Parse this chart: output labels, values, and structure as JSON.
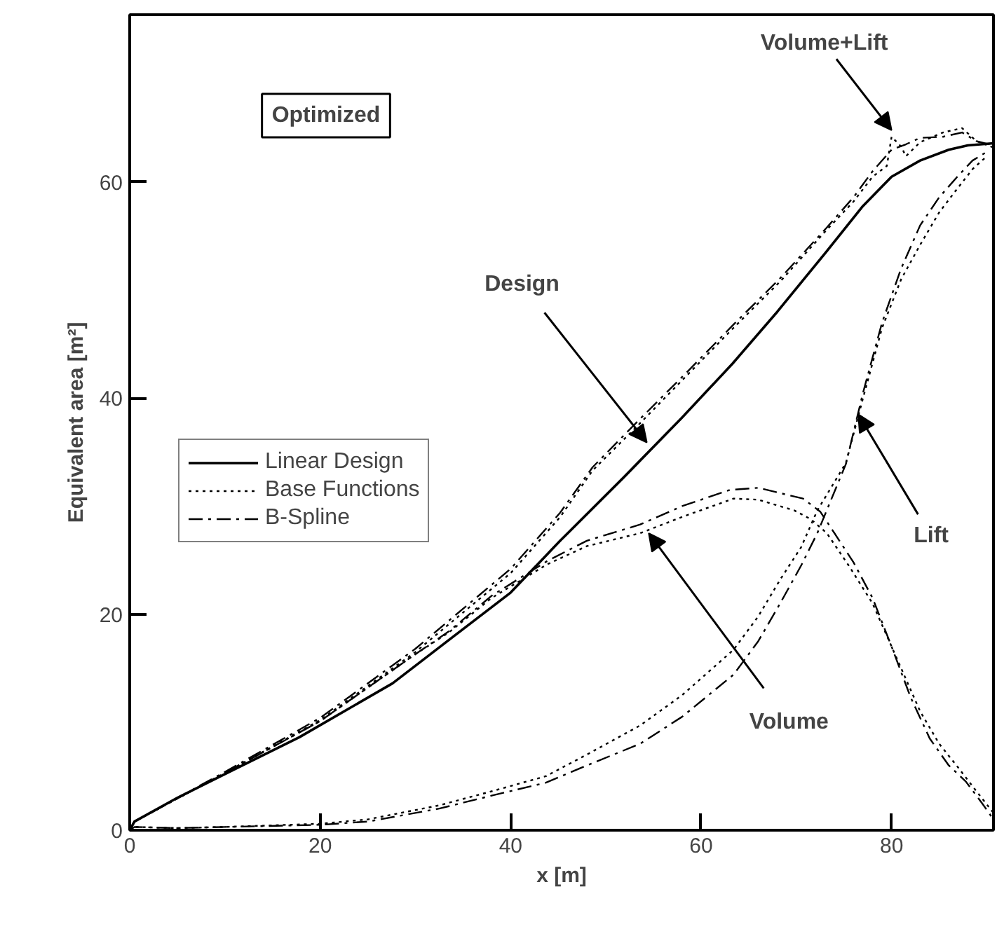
{
  "chart_data": {
    "type": "line",
    "xlabel": "x [m]",
    "ylabel": "Equivalent area [m²]",
    "xlim": [
      0,
      90.7
    ],
    "ylim": [
      0,
      75.5
    ],
    "xticks": [
      0,
      20,
      40,
      60,
      80
    ],
    "yticks": [
      0,
      20,
      40,
      60
    ],
    "grid": false,
    "legend": "left",
    "marker": "none",
    "series": [
      {
        "name": "Linear Design",
        "color": "#000000",
        "line_style": "solid",
        "x": [
          0,
          0.5,
          5,
          10,
          17.8,
          27.6,
          33.5,
          40,
          45.2,
          51.8,
          58,
          63.3,
          68,
          73.1,
          77,
          80,
          83,
          86,
          88,
          90.7
        ],
        "values": [
          0,
          0.8,
          3,
          5.2,
          8.6,
          13.6,
          17.6,
          22,
          26.8,
          32.6,
          38.2,
          43.2,
          48,
          53.5,
          57.8,
          60.5,
          62,
          63,
          63.4,
          63.6
        ]
      },
      {
        "name": "Base Functions",
        "color": "#000000",
        "line_style": "dotted",
        "x": [
          0,
          0.5,
          10,
          20,
          30,
          40,
          45.2,
          48.6,
          53.5,
          58.5,
          63.5,
          68.3,
          73.1,
          76,
          78,
          79.5,
          80,
          81,
          81.5,
          83,
          85.4,
          87.4,
          88.9,
          90.7
        ],
        "values": [
          0,
          0.8,
          5.3,
          10.2,
          16.5,
          23.8,
          29,
          33.3,
          37.6,
          42.1,
          46.6,
          50.8,
          55.5,
          58.2,
          60.5,
          61.5,
          64.2,
          63.3,
          62.4,
          63.7,
          64.6,
          65,
          63.8,
          63.2
        ]
      },
      {
        "color": "#000000",
        "line_style": "dotted",
        "x": [
          0,
          0.5,
          10,
          20,
          30,
          33.5,
          38,
          43.8,
          48,
          53.6,
          58,
          63.4,
          66,
          69.8,
          71.5,
          73.2,
          75.5,
          78,
          80.5,
          83,
          85,
          86.9,
          89,
          90.7
        ],
        "values": [
          0,
          0.8,
          5.3,
          10.1,
          16.3,
          18.3,
          21.5,
          24.6,
          26.3,
          27.5,
          29,
          30.7,
          30.6,
          29.6,
          28.8,
          27.5,
          24.5,
          21,
          16,
          11,
          8,
          5.9,
          3.5,
          1.6
        ]
      },
      {
        "color": "#000000",
        "line_style": "dotted",
        "x": [
          0,
          0.5,
          5,
          10,
          20,
          25,
          32.5,
          38,
          43.7,
          48,
          53.6,
          58,
          63.4,
          66,
          68.3,
          70.5,
          72.2,
          75.2,
          77,
          79,
          81,
          83,
          85,
          86.9,
          88.5,
          90
        ],
        "values": [
          0,
          0.3,
          0.2,
          0.3,
          0.6,
          1.0,
          2.3,
          3.6,
          5.0,
          7.0,
          9.7,
          12.5,
          16.7,
          19.8,
          23.2,
          26.2,
          29.6,
          34,
          40,
          46.5,
          51,
          54.2,
          57.2,
          59.4,
          61.2,
          62.4
        ]
      },
      {
        "name": "B-Spline",
        "color": "#000000",
        "line_style": "dashdot",
        "x": [
          0,
          0.5,
          10,
          20,
          30,
          40,
          45.2,
          48.6,
          53.5,
          58.5,
          63.5,
          68.3,
          73.1,
          76,
          78,
          80,
          81.5,
          83,
          85.4,
          87.4,
          88.9,
          90.7
        ],
        "values": [
          0,
          0.8,
          5.4,
          10.4,
          16.8,
          24.2,
          29.4,
          33.6,
          38,
          42.4,
          46.9,
          51.1,
          55.7,
          58.6,
          61,
          63,
          63.5,
          64.1,
          64.2,
          64.6,
          63.8,
          63.4
        ]
      },
      {
        "color": "#000000",
        "line_style": "dashdot",
        "x": [
          0,
          0.5,
          10,
          20,
          30,
          33.5,
          38,
          43.8,
          48,
          53.6,
          58,
          63,
          66,
          70.7,
          72.5,
          74,
          76,
          78,
          80,
          82,
          84,
          86,
          87.8,
          89.5,
          90.7
        ],
        "values": [
          0,
          0.8,
          5.3,
          10.1,
          16.3,
          18.4,
          21.7,
          24.9,
          26.8,
          28.3,
          30,
          31.5,
          31.7,
          30.7,
          29.5,
          27.5,
          24.8,
          21.5,
          17,
          12.3,
          8.5,
          6,
          4.5,
          2.5,
          1
        ]
      },
      {
        "color": "#000000",
        "line_style": "dashdot",
        "x": [
          0,
          0.5,
          5,
          10,
          20,
          25,
          32.5,
          38,
          43.7,
          48,
          53.6,
          58,
          63.4,
          66,
          68.3,
          70.5,
          72.2,
          75.2,
          77,
          79,
          81,
          83,
          85,
          86.9,
          88.5,
          90
        ],
        "values": [
          0,
          0.3,
          0.2,
          0.3,
          0.5,
          0.8,
          2.0,
          3.2,
          4.4,
          6.0,
          8.0,
          10.5,
          14.4,
          17.5,
          21,
          24.5,
          27.5,
          33.9,
          40.5,
          47,
          52,
          56,
          58.6,
          60.5,
          62,
          62.8
        ]
      }
    ],
    "annotations": [
      "Optimized",
      {
        "text": "Design",
        "x": 54.3,
        "y": 35.9
      },
      {
        "text": "Volume+Lift",
        "x": 80,
        "y": 64.8
      },
      {
        "text": "Volume",
        "x": 54.5,
        "y": 27.5
      },
      {
        "text": "Lift",
        "x": 76.5,
        "y": 38.5
      }
    ]
  }
}
